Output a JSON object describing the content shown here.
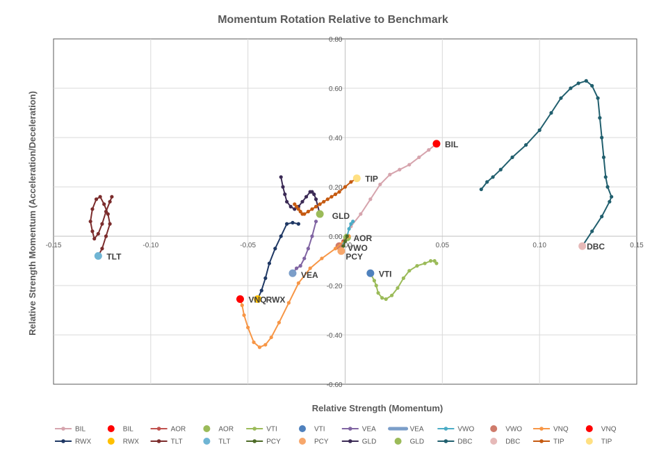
{
  "chart_data": {
    "type": "scatter",
    "title": "Momentum Rotation Relative to Benchmark",
    "xlabel": "Relative Strength (Momentum)",
    "ylabel": "Relative Strength Momentum (Acceleration/Deceleration)",
    "xlim": [
      -0.15,
      0.15
    ],
    "ylim": [
      -0.6,
      0.8
    ],
    "x_ticks": [
      -0.15,
      -0.1,
      -0.05,
      0.0,
      0.05,
      0.1,
      0.15
    ],
    "x_tick_labels": [
      "-0.15",
      "-0.10",
      "-0.05",
      "0.00",
      "0.05",
      "0.10",
      "0.15"
    ],
    "y_ticks": [
      -0.6,
      -0.4,
      -0.2,
      0.0,
      0.2,
      0.4,
      0.6,
      0.8
    ],
    "y_tick_labels": [
      "-0.60",
      "-0.40",
      "-0.20",
      "0.00",
      "0.20",
      "0.40",
      "0.60",
      "0.80"
    ],
    "grid": true,
    "legend_position": "bottom",
    "series": [
      {
        "name": "BIL",
        "color": "#d6a4ad",
        "end_color": "#ff0000",
        "x": [
          0.003,
          0.008,
          0.013,
          0.018,
          0.023,
          0.028,
          0.033,
          0.038,
          0.043,
          0.047
        ],
        "y": [
          0.04,
          0.09,
          0.15,
          0.21,
          0.25,
          0.27,
          0.29,
          0.32,
          0.35,
          0.375
        ]
      },
      {
        "name": "AOR",
        "color": "#c0504d",
        "end_color": "#9bbb59",
        "x": [
          -0.002,
          -0.001,
          0.0,
          0.001
        ],
        "y": [
          -0.04,
          -0.02,
          -0.01,
          -0.005
        ]
      },
      {
        "name": "VTI",
        "color": "#9bbb59",
        "end_color": "#4f81bd",
        "x": [
          0.047,
          0.046,
          0.044,
          0.041,
          0.037,
          0.033,
          0.03,
          0.027,
          0.024,
          0.021,
          0.019,
          0.017,
          0.016,
          0.015,
          0.013
        ],
        "y": [
          -0.11,
          -0.1,
          -0.1,
          -0.11,
          -0.12,
          -0.14,
          -0.17,
          -0.21,
          -0.24,
          -0.255,
          -0.25,
          -0.23,
          -0.2,
          -0.18,
          -0.15
        ]
      },
      {
        "name": "VEA",
        "color": "#8064a2",
        "end_color": "#7b9ec9",
        "x": [
          -0.015,
          -0.017,
          -0.019,
          -0.021,
          -0.023,
          -0.025,
          -0.027
        ],
        "y": [
          0.06,
          0.0,
          -0.05,
          -0.09,
          -0.12,
          -0.13,
          -0.15
        ]
      },
      {
        "name": "VWO",
        "color": "#4bacc6",
        "end_color": "#cf7b6b",
        "x": [
          0.004,
          0.003,
          0.002,
          0.001,
          0.0,
          -0.003
        ],
        "y": [
          0.06,
          0.05,
          0.03,
          0.0,
          -0.02,
          -0.04
        ]
      },
      {
        "name": "VNQ",
        "color": "#f79646",
        "end_color": "#ff0000",
        "x": [
          0.002,
          -0.005,
          -0.012,
          -0.018,
          -0.024,
          -0.029,
          -0.034,
          -0.038,
          -0.041,
          -0.044,
          -0.047,
          -0.05,
          -0.052,
          -0.053,
          -0.054
        ],
        "y": [
          0.0,
          -0.05,
          -0.09,
          -0.13,
          -0.19,
          -0.27,
          -0.35,
          -0.41,
          -0.44,
          -0.45,
          -0.43,
          -0.37,
          -0.32,
          -0.28,
          -0.255
        ]
      },
      {
        "name": "RWX",
        "color": "#1f3864",
        "end_color": "#ffc000",
        "x": [
          -0.024,
          -0.027,
          -0.03,
          -0.033,
          -0.036,
          -0.039,
          -0.041,
          -0.043,
          -0.045
        ],
        "y": [
          0.05,
          0.055,
          0.05,
          0.0,
          -0.05,
          -0.11,
          -0.17,
          -0.22,
          -0.255
        ]
      },
      {
        "name": "TLT",
        "color": "#7b2c2c",
        "end_color": "#6fb5d4",
        "x": [
          -0.12,
          -0.121,
          -0.123,
          -0.125,
          -0.127,
          -0.129,
          -0.13,
          -0.131,
          -0.13,
          -0.128,
          -0.126,
          -0.124,
          -0.122,
          -0.121,
          -0.123,
          -0.125,
          -0.127
        ],
        "y": [
          0.16,
          0.14,
          0.1,
          0.05,
          0.01,
          -0.01,
          0.02,
          0.06,
          0.11,
          0.15,
          0.16,
          0.13,
          0.09,
          0.05,
          0.0,
          -0.05,
          -0.08
        ]
      },
      {
        "name": "PCY",
        "color": "#4e6b28",
        "end_color": "#f7a76b",
        "x": [
          0.001,
          0.0,
          -0.001,
          -0.002
        ],
        "y": [
          0.0,
          -0.02,
          -0.04,
          -0.06
        ]
      },
      {
        "name": "GLD",
        "color": "#3b2a55",
        "end_color": "#9bbb59",
        "x": [
          -0.033,
          -0.032,
          -0.031,
          -0.03,
          -0.028,
          -0.026,
          -0.024,
          -0.022,
          -0.02,
          -0.018,
          -0.017,
          -0.016,
          -0.015,
          -0.013
        ],
        "y": [
          0.24,
          0.2,
          0.17,
          0.14,
          0.12,
          0.11,
          0.12,
          0.14,
          0.16,
          0.18,
          0.18,
          0.17,
          0.15,
          0.09
        ]
      },
      {
        "name": "DBC",
        "color": "#215f6e",
        "end_color": "#e6b9b8",
        "x": [
          0.07,
          0.073,
          0.076,
          0.08,
          0.086,
          0.093,
          0.1,
          0.106,
          0.111,
          0.116,
          0.12,
          0.124,
          0.127,
          0.13,
          0.131,
          0.132,
          0.133,
          0.134,
          0.135,
          0.137,
          0.136,
          0.132,
          0.127,
          0.122
        ],
        "y": [
          0.19,
          0.22,
          0.24,
          0.27,
          0.32,
          0.37,
          0.43,
          0.5,
          0.56,
          0.6,
          0.62,
          0.63,
          0.61,
          0.56,
          0.48,
          0.4,
          0.32,
          0.24,
          0.2,
          0.16,
          0.14,
          0.08,
          0.02,
          -0.04
        ]
      },
      {
        "name": "TIP",
        "color": "#c55a11",
        "end_color": "#ffe082",
        "x": [
          -0.026,
          -0.025,
          -0.024,
          -0.023,
          -0.022,
          -0.021,
          -0.019,
          -0.017,
          -0.015,
          -0.013,
          -0.011,
          -0.009,
          -0.007,
          -0.005,
          -0.003,
          0.0,
          0.003,
          0.006
        ],
        "y": [
          0.13,
          0.12,
          0.11,
          0.1,
          0.09,
          0.09,
          0.1,
          0.11,
          0.12,
          0.13,
          0.14,
          0.15,
          0.16,
          0.17,
          0.18,
          0.2,
          0.22,
          0.235
        ]
      }
    ],
    "end_labels": [
      {
        "text": "BIL",
        "x": 0.047,
        "y": 0.375
      },
      {
        "text": "TIP",
        "x": 0.006,
        "y": 0.235
      },
      {
        "text": "GLD",
        "x": -0.011,
        "y": 0.085
      },
      {
        "text": "AOR",
        "x": 0.0,
        "y": -0.005
      },
      {
        "text": "VWO",
        "x": -0.003,
        "y": -0.045
      },
      {
        "text": "PCY",
        "x": -0.004,
        "y": -0.08
      },
      {
        "text": "VTI",
        "x": 0.013,
        "y": -0.15
      },
      {
        "text": "VEA",
        "x": -0.027,
        "y": -0.155
      },
      {
        "text": "VNQ",
        "x": -0.054,
        "y": -0.255
      },
      {
        "text": "RWX",
        "x": -0.045,
        "y": -0.255
      },
      {
        "text": "TLT",
        "x": -0.127,
        "y": -0.08
      },
      {
        "text": "DBC",
        "x": 0.12,
        "y": -0.04
      }
    ],
    "legend": {
      "row1": [
        {
          "label": "BIL",
          "kind": "line",
          "color": "#d6a4ad"
        },
        {
          "label": "BIL",
          "kind": "dot",
          "color": "#ff0000"
        },
        {
          "label": "AOR",
          "kind": "line",
          "color": "#c0504d"
        },
        {
          "label": "AOR",
          "kind": "dot",
          "color": "#9bbb59"
        },
        {
          "label": "VTI",
          "kind": "line",
          "color": "#9bbb59"
        },
        {
          "label": "VTI",
          "kind": "dot",
          "color": "#4f81bd"
        },
        {
          "label": "VEA",
          "kind": "line",
          "color": "#8064a2"
        },
        {
          "label": "VEA",
          "kind": "thick",
          "color": "#7b9ec9"
        },
        {
          "label": "VWO",
          "kind": "line",
          "color": "#4bacc6"
        },
        {
          "label": "VWO",
          "kind": "dot",
          "color": "#cf7b6b"
        },
        {
          "label": "VNQ",
          "kind": "line",
          "color": "#f79646"
        },
        {
          "label": "VNQ",
          "kind": "dot",
          "color": "#ff0000"
        }
      ],
      "row2": [
        {
          "label": "RWX",
          "kind": "line",
          "color": "#1f3864"
        },
        {
          "label": "RWX",
          "kind": "dot",
          "color": "#ffc000"
        },
        {
          "label": "TLT",
          "kind": "line",
          "color": "#7b2c2c"
        },
        {
          "label": "TLT",
          "kind": "dot",
          "color": "#6fb5d4"
        },
        {
          "label": "PCY",
          "kind": "line",
          "color": "#4e6b28"
        },
        {
          "label": "PCY",
          "kind": "dot",
          "color": "#f7a76b"
        },
        {
          "label": "GLD",
          "kind": "line",
          "color": "#3b2a55"
        },
        {
          "label": "GLD",
          "kind": "dot",
          "color": "#9bbb59"
        },
        {
          "label": "DBC",
          "kind": "line",
          "color": "#215f6e"
        },
        {
          "label": "DBC",
          "kind": "dot",
          "color": "#e6b9b8"
        },
        {
          "label": "TIP",
          "kind": "line",
          "color": "#c55a11"
        },
        {
          "label": "TIP",
          "kind": "dot",
          "color": "#ffe082"
        }
      ]
    }
  }
}
